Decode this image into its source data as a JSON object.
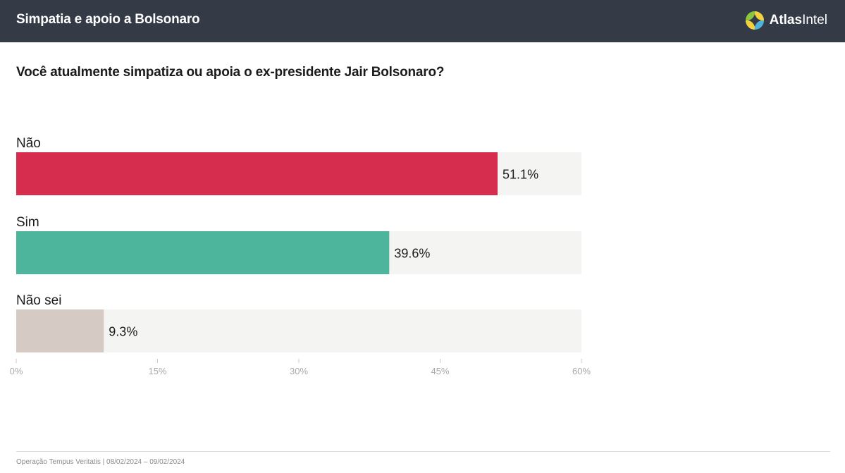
{
  "header": {
    "title": "Simpatia e apoio a Bolsonaro",
    "brand_name_bold": "Atlas",
    "brand_name_light": "Intel",
    "background_color": "#343a46"
  },
  "question": "Você atualmente simpatiza ou apoia o ex-presidente Jair Bolsonaro?",
  "footer": "Operação Tempus Veritatis | 08/02/2024 – 09/02/2024",
  "chart_data": {
    "type": "bar",
    "orientation": "horizontal",
    "categories": [
      "Não",
      "Sim",
      "Não sei"
    ],
    "values": [
      51.1,
      39.6,
      9.3
    ],
    "value_labels": [
      "51.1%",
      "39.6%",
      "9.3%"
    ],
    "colors": [
      "#d62d4f",
      "#4db59b",
      "#d5cbc4"
    ],
    "track_color": "#f4f4f2",
    "xlim": [
      0,
      60
    ],
    "ticks": [
      0,
      15,
      30,
      45,
      60
    ],
    "tick_labels": [
      "0%",
      "15%",
      "30%",
      "45%",
      "60%"
    ],
    "grid": false
  }
}
